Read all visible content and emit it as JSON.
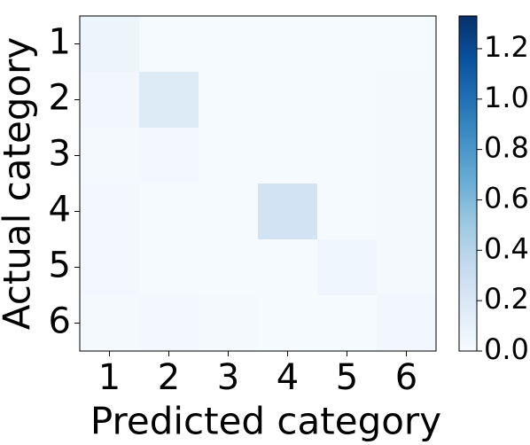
{
  "chart_data": {
    "type": "heatmap",
    "xlabel": "Predicted category",
    "ylabel": "Actual category",
    "x_categories": [
      "1",
      "2",
      "3",
      "4",
      "5",
      "6"
    ],
    "y_categories": [
      "1",
      "2",
      "3",
      "4",
      "5",
      "6"
    ],
    "values": [
      [
        0.07,
        0.01,
        0.01,
        0.01,
        0.01,
        0.01
      ],
      [
        0.04,
        0.17,
        0.01,
        0.01,
        0.01,
        0.02
      ],
      [
        0.02,
        0.03,
        0.01,
        0.01,
        0.01,
        0.02
      ],
      [
        0.03,
        0.01,
        0.01,
        0.25,
        0.01,
        0.02
      ],
      [
        0.03,
        0.01,
        0.01,
        0.01,
        0.05,
        0.02
      ],
      [
        0.02,
        0.03,
        0.02,
        0.01,
        0.01,
        0.04
      ]
    ],
    "colormap": "Blues",
    "clim": [
      0,
      1.33
    ],
    "cticks": [
      {
        "value": 0,
        "label": "0.0"
      },
      {
        "value": 0.2,
        "label": "0.2"
      },
      {
        "value": 0.4,
        "label": "0.4"
      },
      {
        "value": 0.6,
        "label": "0.6"
      },
      {
        "value": 0.8,
        "label": "0.8"
      },
      {
        "value": 1.0,
        "label": "1.0"
      },
      {
        "value": 1.2,
        "label": "1.2"
      }
    ]
  }
}
